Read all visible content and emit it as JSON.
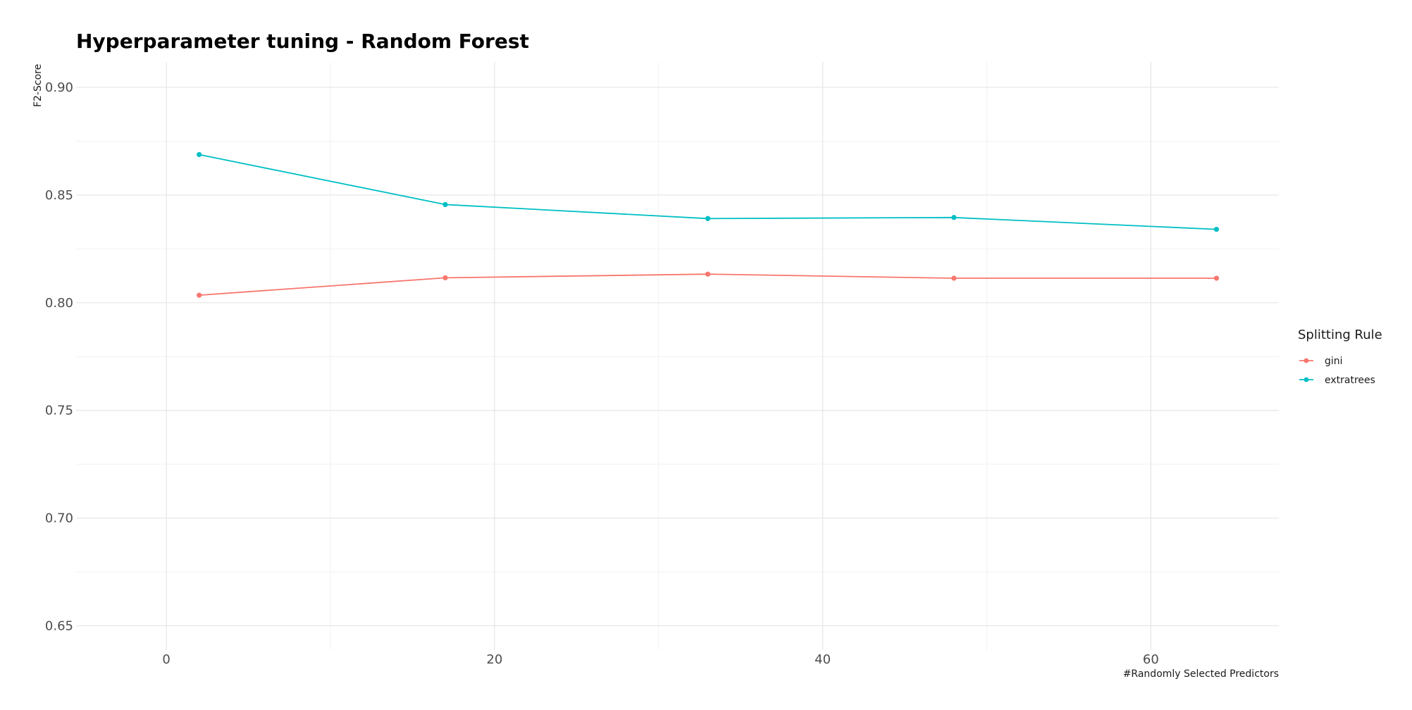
{
  "chart_data": {
    "type": "line",
    "title": "Hyperparameter tuning - Random Forest",
    "xlabel": "#Randomly Selected Predictors",
    "ylabel": "F2-Score",
    "xlim": [
      -5.5,
      67.8
    ],
    "ylim": [
      0.6387,
      0.9118
    ],
    "x_ticks": [
      0,
      20,
      40,
      60
    ],
    "x_minor_ticks": [
      10,
      30,
      50
    ],
    "y_ticks": [
      0.65,
      0.7,
      0.75,
      0.8,
      0.85,
      0.9
    ],
    "y_tick_labels": [
      "0.65",
      "0.70",
      "0.75",
      "0.80",
      "0.85",
      "0.90"
    ],
    "y_minor_ticks": [
      0.675,
      0.725,
      0.775,
      0.825,
      0.875
    ],
    "grid": true,
    "legend": {
      "title": "Splitting Rule",
      "position": "right"
    },
    "series": [
      {
        "name": "gini",
        "color": "#F8766D",
        "x": [
          2,
          17,
          33,
          48,
          64
        ],
        "y": [
          0.8035,
          0.8116,
          0.8133,
          0.8114,
          0.8114
        ]
      },
      {
        "name": "extratrees",
        "color": "#00BFC4",
        "x": [
          2,
          17,
          33,
          48,
          64
        ],
        "y": [
          0.8688,
          0.8456,
          0.8391,
          0.8396,
          0.8341
        ]
      }
    ]
  }
}
